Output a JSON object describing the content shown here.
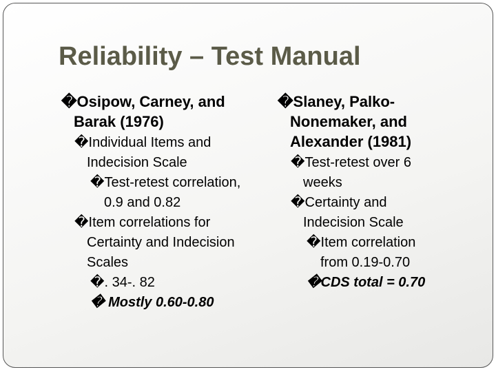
{
  "title": "Reliability – Test Manual",
  "columns": [
    {
      "items": [
        {
          "level": 1,
          "text": "�Osipow, Carney, and Barak (1976)"
        },
        {
          "level": 2,
          "text": "�Individual Items and Indecision Scale"
        },
        {
          "level": 3,
          "text": "�Test-retest correlation, 0.9 and 0.82"
        },
        {
          "level": 2,
          "text": "�Item correlations for Certainty and Indecision Scales"
        },
        {
          "level": 3,
          "text": "�. 34-. 82"
        },
        {
          "level": 3,
          "text": "� Mostly 0.60-0.80",
          "emphasis": true
        }
      ]
    },
    {
      "items": [
        {
          "level": 1,
          "text": "�Slaney, Palko-Nonemaker, and Alexander (1981)"
        },
        {
          "level": 2,
          "text": "�Test-retest over 6 weeks"
        },
        {
          "level": 2,
          "text": "�Certainty and Indecision Scale"
        },
        {
          "level": 3,
          "text": "�Item correlation from 0.19-0.70"
        },
        {
          "level": 3,
          "text": "�CDS total = 0.70",
          "emphasis": true
        }
      ]
    }
  ]
}
